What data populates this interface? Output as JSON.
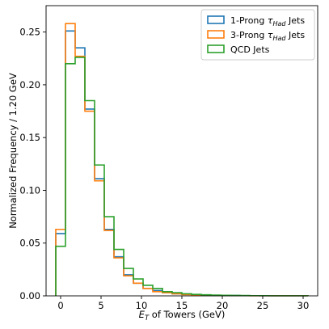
{
  "chart_data": {
    "type": "step-histogram",
    "xlabel_parts": [
      "E",
      "T",
      " of Towers (GeV)"
    ],
    "ylabel": "Normalized Frequency / 1.20 GeV",
    "xlim": [
      -1.8,
      31.8
    ],
    "ylim": [
      0,
      0.275
    ],
    "xticks": [
      0,
      5,
      10,
      15,
      20,
      25,
      30
    ],
    "xtick_labels": [
      "0",
      "5",
      "10",
      "15",
      "20",
      "25",
      "30"
    ],
    "yticks": [
      0,
      0.05,
      0.1,
      0.15,
      0.2,
      0.25
    ],
    "ytick_labels": [
      "0.00",
      "0.05",
      "0.10",
      "0.15",
      "0.20",
      "0.25"
    ],
    "bin_edges": [
      -0.6,
      0.6,
      1.8,
      3.0,
      4.2,
      5.4,
      6.6,
      7.8,
      9.0,
      10.2,
      11.4,
      12.6,
      13.8,
      15.0,
      16.2,
      17.4,
      18.6,
      19.8,
      21.0,
      22.2,
      23.4,
      24.6,
      25.8,
      27.0,
      28.2,
      29.4,
      30.6
    ],
    "legend_position": "upper right",
    "series": [
      {
        "name_parts": [
          "1-Prong ",
          "τ",
          "Had",
          " Jets"
        ],
        "color": "#1f77b4",
        "values": [
          0.059,
          0.251,
          0.235,
          0.177,
          0.111,
          0.063,
          0.037,
          0.02,
          0.012,
          0.007,
          0.005,
          0.003,
          0.002,
          0.0015,
          0.001,
          0.0008,
          0.0005,
          0.0004,
          0.0003,
          0.0002,
          0.0002,
          0.0001,
          0.0001,
          0.0001,
          0.0001,
          0.0001
        ]
      },
      {
        "name_parts": [
          "3-Prong ",
          "τ",
          "Had",
          " Jets"
        ],
        "color": "#ff7f0e",
        "values": [
          0.063,
          0.258,
          0.227,
          0.175,
          0.109,
          0.062,
          0.036,
          0.019,
          0.012,
          0.007,
          0.004,
          0.003,
          0.002,
          0.0012,
          0.0008,
          0.0006,
          0.0004,
          0.0003,
          0.0002,
          0.0002,
          0.0001,
          0.0001,
          0.0001,
          0.0001,
          0.0001,
          0.0001
        ]
      },
      {
        "name_parts": [
          "QCD Jets"
        ],
        "color": "#2ca02c",
        "values": [
          0.047,
          0.22,
          0.226,
          0.185,
          0.124,
          0.075,
          0.044,
          0.026,
          0.016,
          0.01,
          0.007,
          0.004,
          0.003,
          0.002,
          0.0014,
          0.001,
          0.0007,
          0.0005,
          0.0004,
          0.0003,
          0.0002,
          0.0002,
          0.0001,
          0.0001,
          0.0001,
          0.0001
        ]
      }
    ]
  }
}
